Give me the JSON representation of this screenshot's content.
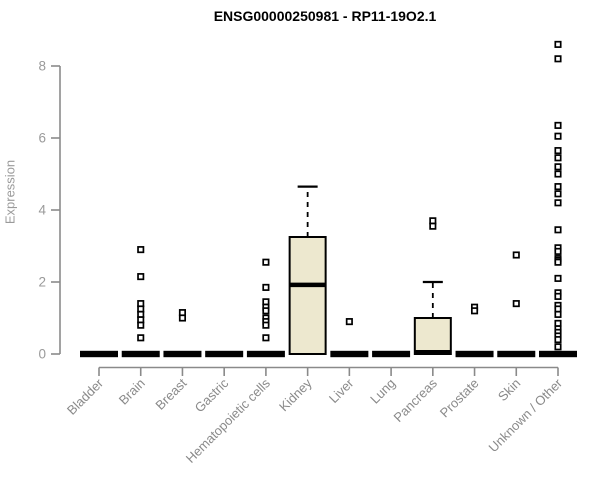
{
  "chart_data": {
    "type": "boxplot",
    "title": "ENSG00000250981 - RP11-19O2.1",
    "ylabel": "Expression",
    "xlabel": "",
    "ylim": [
      0,
      8.7
    ],
    "yticks": [
      0,
      2,
      4,
      6,
      8
    ],
    "grid": false,
    "legend": "none",
    "marker": "open-square",
    "categories": [
      "Bladder",
      "Brain",
      "Breast",
      "Gastric",
      "Hematopoietic cells",
      "Kidney",
      "Liver",
      "Lung",
      "Pancreas",
      "Prostate",
      "Skin",
      "Unknown / Other"
    ],
    "series": [
      {
        "category": "Bladder",
        "q1": 0,
        "median": 0,
        "q3": 0,
        "whisker_low": 0,
        "whisker_high": 0,
        "outliers": []
      },
      {
        "category": "Brain",
        "q1": 0,
        "median": 0,
        "q3": 0,
        "whisker_low": 0,
        "whisker_high": 0,
        "outliers": [
          2.9,
          2.15,
          1.4,
          1.25,
          1.1,
          0.95,
          0.8,
          0.45
        ]
      },
      {
        "category": "Breast",
        "q1": 0,
        "median": 0,
        "q3": 0,
        "whisker_low": 0,
        "whisker_high": 0,
        "outliers": [
          1.15,
          1.0
        ]
      },
      {
        "category": "Gastric",
        "q1": 0,
        "median": 0,
        "q3": 0,
        "whisker_low": 0,
        "whisker_high": 0,
        "outliers": []
      },
      {
        "category": "Hematopoietic cells",
        "q1": 0,
        "median": 0,
        "q3": 0,
        "whisker_low": 0,
        "whisker_high": 0,
        "outliers": [
          2.55,
          1.85,
          1.45,
          1.3,
          1.2,
          1.0,
          0.9,
          0.8,
          0.45
        ]
      },
      {
        "category": "Kidney",
        "q1": 0,
        "median": 1.92,
        "q3": 3.25,
        "whisker_low": 0,
        "whisker_high": 4.65,
        "outliers": []
      },
      {
        "category": "Liver",
        "q1": 0,
        "median": 0,
        "q3": 0,
        "whisker_low": 0,
        "whisker_high": 0,
        "outliers": [
          0.9
        ]
      },
      {
        "category": "Lung",
        "q1": 0,
        "median": 0,
        "q3": 0,
        "whisker_low": 0,
        "whisker_high": 0,
        "outliers": []
      },
      {
        "category": "Pancreas",
        "q1": 0,
        "median": 0.05,
        "q3": 1.0,
        "whisker_low": 0,
        "whisker_high": 2.0,
        "outliers": [
          3.7,
          3.55
        ]
      },
      {
        "category": "Prostate",
        "q1": 0,
        "median": 0,
        "q3": 0,
        "whisker_low": 0,
        "whisker_high": 0,
        "outliers": [
          1.3,
          1.2
        ]
      },
      {
        "category": "Skin",
        "q1": 0,
        "median": 0,
        "q3": 0,
        "whisker_low": 0,
        "whisker_high": 0,
        "outliers": [
          2.75,
          1.4
        ]
      },
      {
        "category": "Unknown / Other",
        "q1": 0,
        "median": 0,
        "q3": 0,
        "whisker_low": 0,
        "whisker_high": 0,
        "outliers": [
          8.6,
          8.2,
          6.35,
          6.05,
          5.65,
          5.45,
          5.2,
          5.0,
          4.65,
          4.45,
          4.2,
          3.45,
          2.95,
          2.85,
          2.65,
          2.6,
          2.55,
          2.1,
          1.7,
          1.6,
          1.35,
          1.25,
          1.1,
          0.85,
          0.7,
          0.6,
          0.5,
          0.4,
          0.2
        ]
      }
    ],
    "colors": {
      "box_fill": "#ede8cf",
      "box_stroke": "#000000",
      "median": "#000000",
      "whisker": "#000000",
      "outlier_stroke": "#000000",
      "outlier_fill": "#ffffff",
      "axis": "#8a8a8a",
      "tick_label": "#9a9a9a",
      "title": "#000000",
      "background": "#ffffff"
    }
  }
}
